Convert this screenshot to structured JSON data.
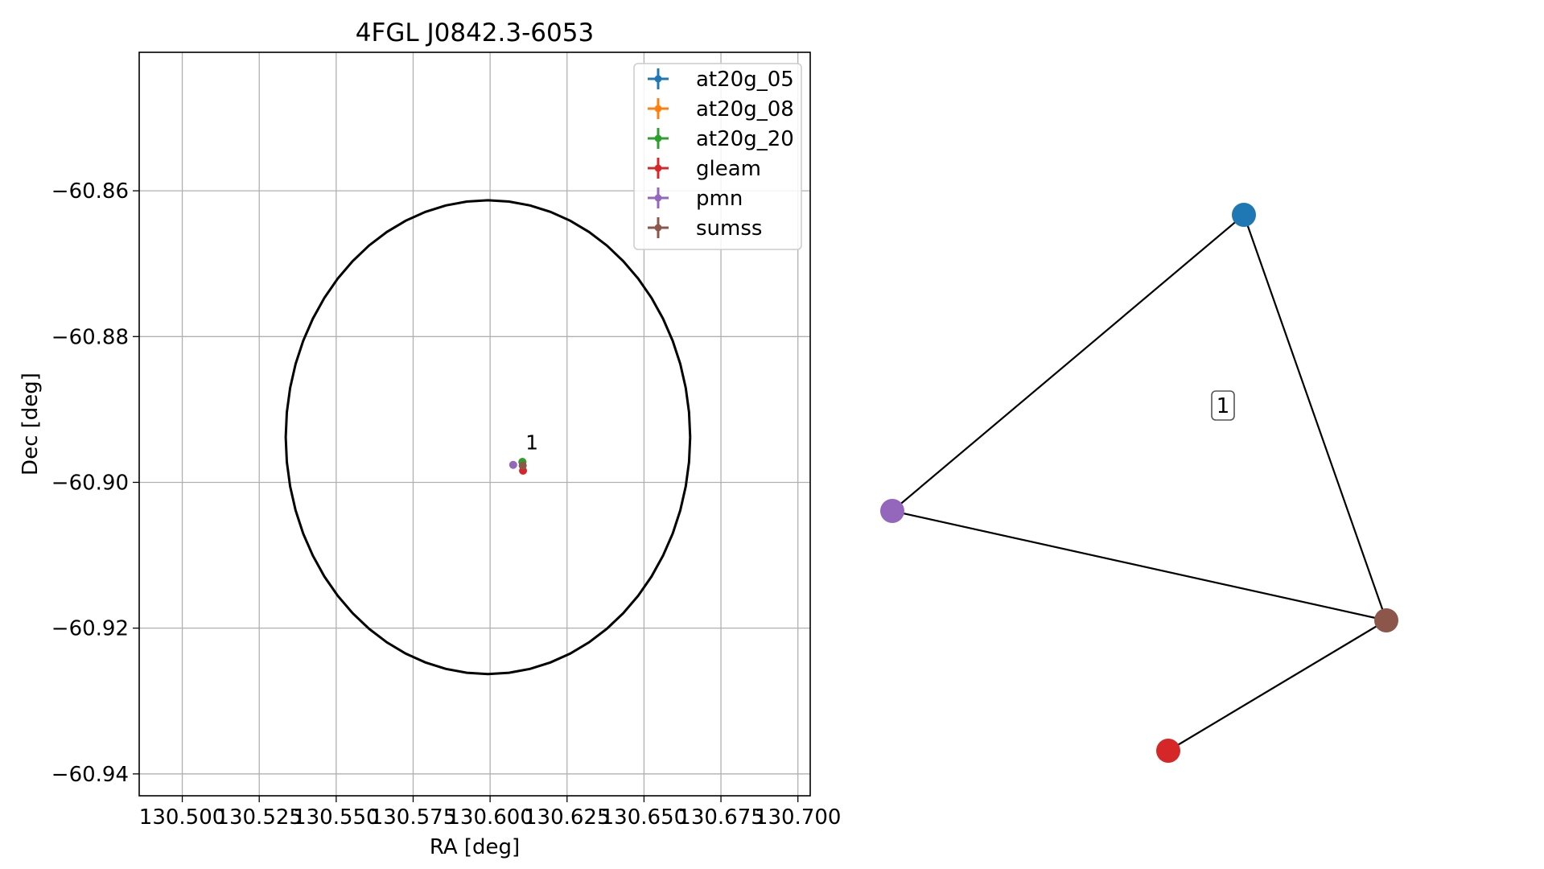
{
  "chart_data": [
    {
      "type": "scatter",
      "title": "4FGL J0842.3-6053",
      "xlabel": "RA [deg]",
      "ylabel": "Dec [deg]",
      "xlim": [
        130.486,
        130.704
      ],
      "ylim": [
        -60.943,
        -60.841
      ],
      "xticks": [
        130.5,
        130.525,
        130.55,
        130.575,
        130.6,
        130.625,
        130.65,
        130.675,
        130.7
      ],
      "xtick_labels": [
        "130.500",
        "130.525",
        "130.550",
        "130.575",
        "130.600",
        "130.625",
        "130.650",
        "130.675",
        "130.700"
      ],
      "yticks": [
        -60.86,
        -60.88,
        -60.9,
        -60.92,
        -60.94
      ],
      "ytick_labels": [
        "−60.86",
        "−60.88",
        "−60.90",
        "−60.92",
        "−60.94"
      ],
      "grid": true,
      "legend_position": "top-right",
      "series": [
        {
          "name": "at20g_05",
          "color": "#1f77b4",
          "points": [
            {
              "x": 130.6105,
              "y": -60.8972
            }
          ]
        },
        {
          "name": "at20g_08",
          "color": "#ff7f0e",
          "points": [
            {
              "x": 130.6105,
              "y": -60.8972
            }
          ]
        },
        {
          "name": "at20g_20",
          "color": "#2ca02c",
          "points": [
            {
              "x": 130.6105,
              "y": -60.8972
            }
          ]
        },
        {
          "name": "gleam",
          "color": "#d62728",
          "points": [
            {
              "x": 130.6107,
              "y": -60.8984
            }
          ]
        },
        {
          "name": "pmn",
          "color": "#9467bd",
          "points": [
            {
              "x": 130.6075,
              "y": -60.8976
            }
          ]
        },
        {
          "name": "sumss",
          "color": "#8c564b",
          "points": [
            {
              "x": 130.6106,
              "y": -60.8977
            }
          ]
        }
      ],
      "ellipse": {
        "center": {
          "x": 130.5993,
          "y": -60.8938
        },
        "ra_semi_axis": 0.0657,
        "dec_semi_axis": 0.0325,
        "color": "#000000"
      },
      "annotations": [
        {
          "text": "1",
          "x": 130.6115,
          "y": -60.8955
        }
      ]
    },
    {
      "type": "network",
      "nodes": [
        {
          "id": "at20g_05",
          "color": "#1f77b4"
        },
        {
          "id": "pmn",
          "color": "#9467bd"
        },
        {
          "id": "sumss",
          "color": "#8c564b"
        },
        {
          "id": "gleam",
          "color": "#d62728"
        }
      ],
      "edges": [
        [
          "at20g_05",
          "pmn"
        ],
        [
          "at20g_05",
          "sumss"
        ],
        [
          "pmn",
          "sumss"
        ],
        [
          "sumss",
          "gleam"
        ]
      ],
      "annotations": [
        {
          "text": "1"
        }
      ]
    }
  ]
}
